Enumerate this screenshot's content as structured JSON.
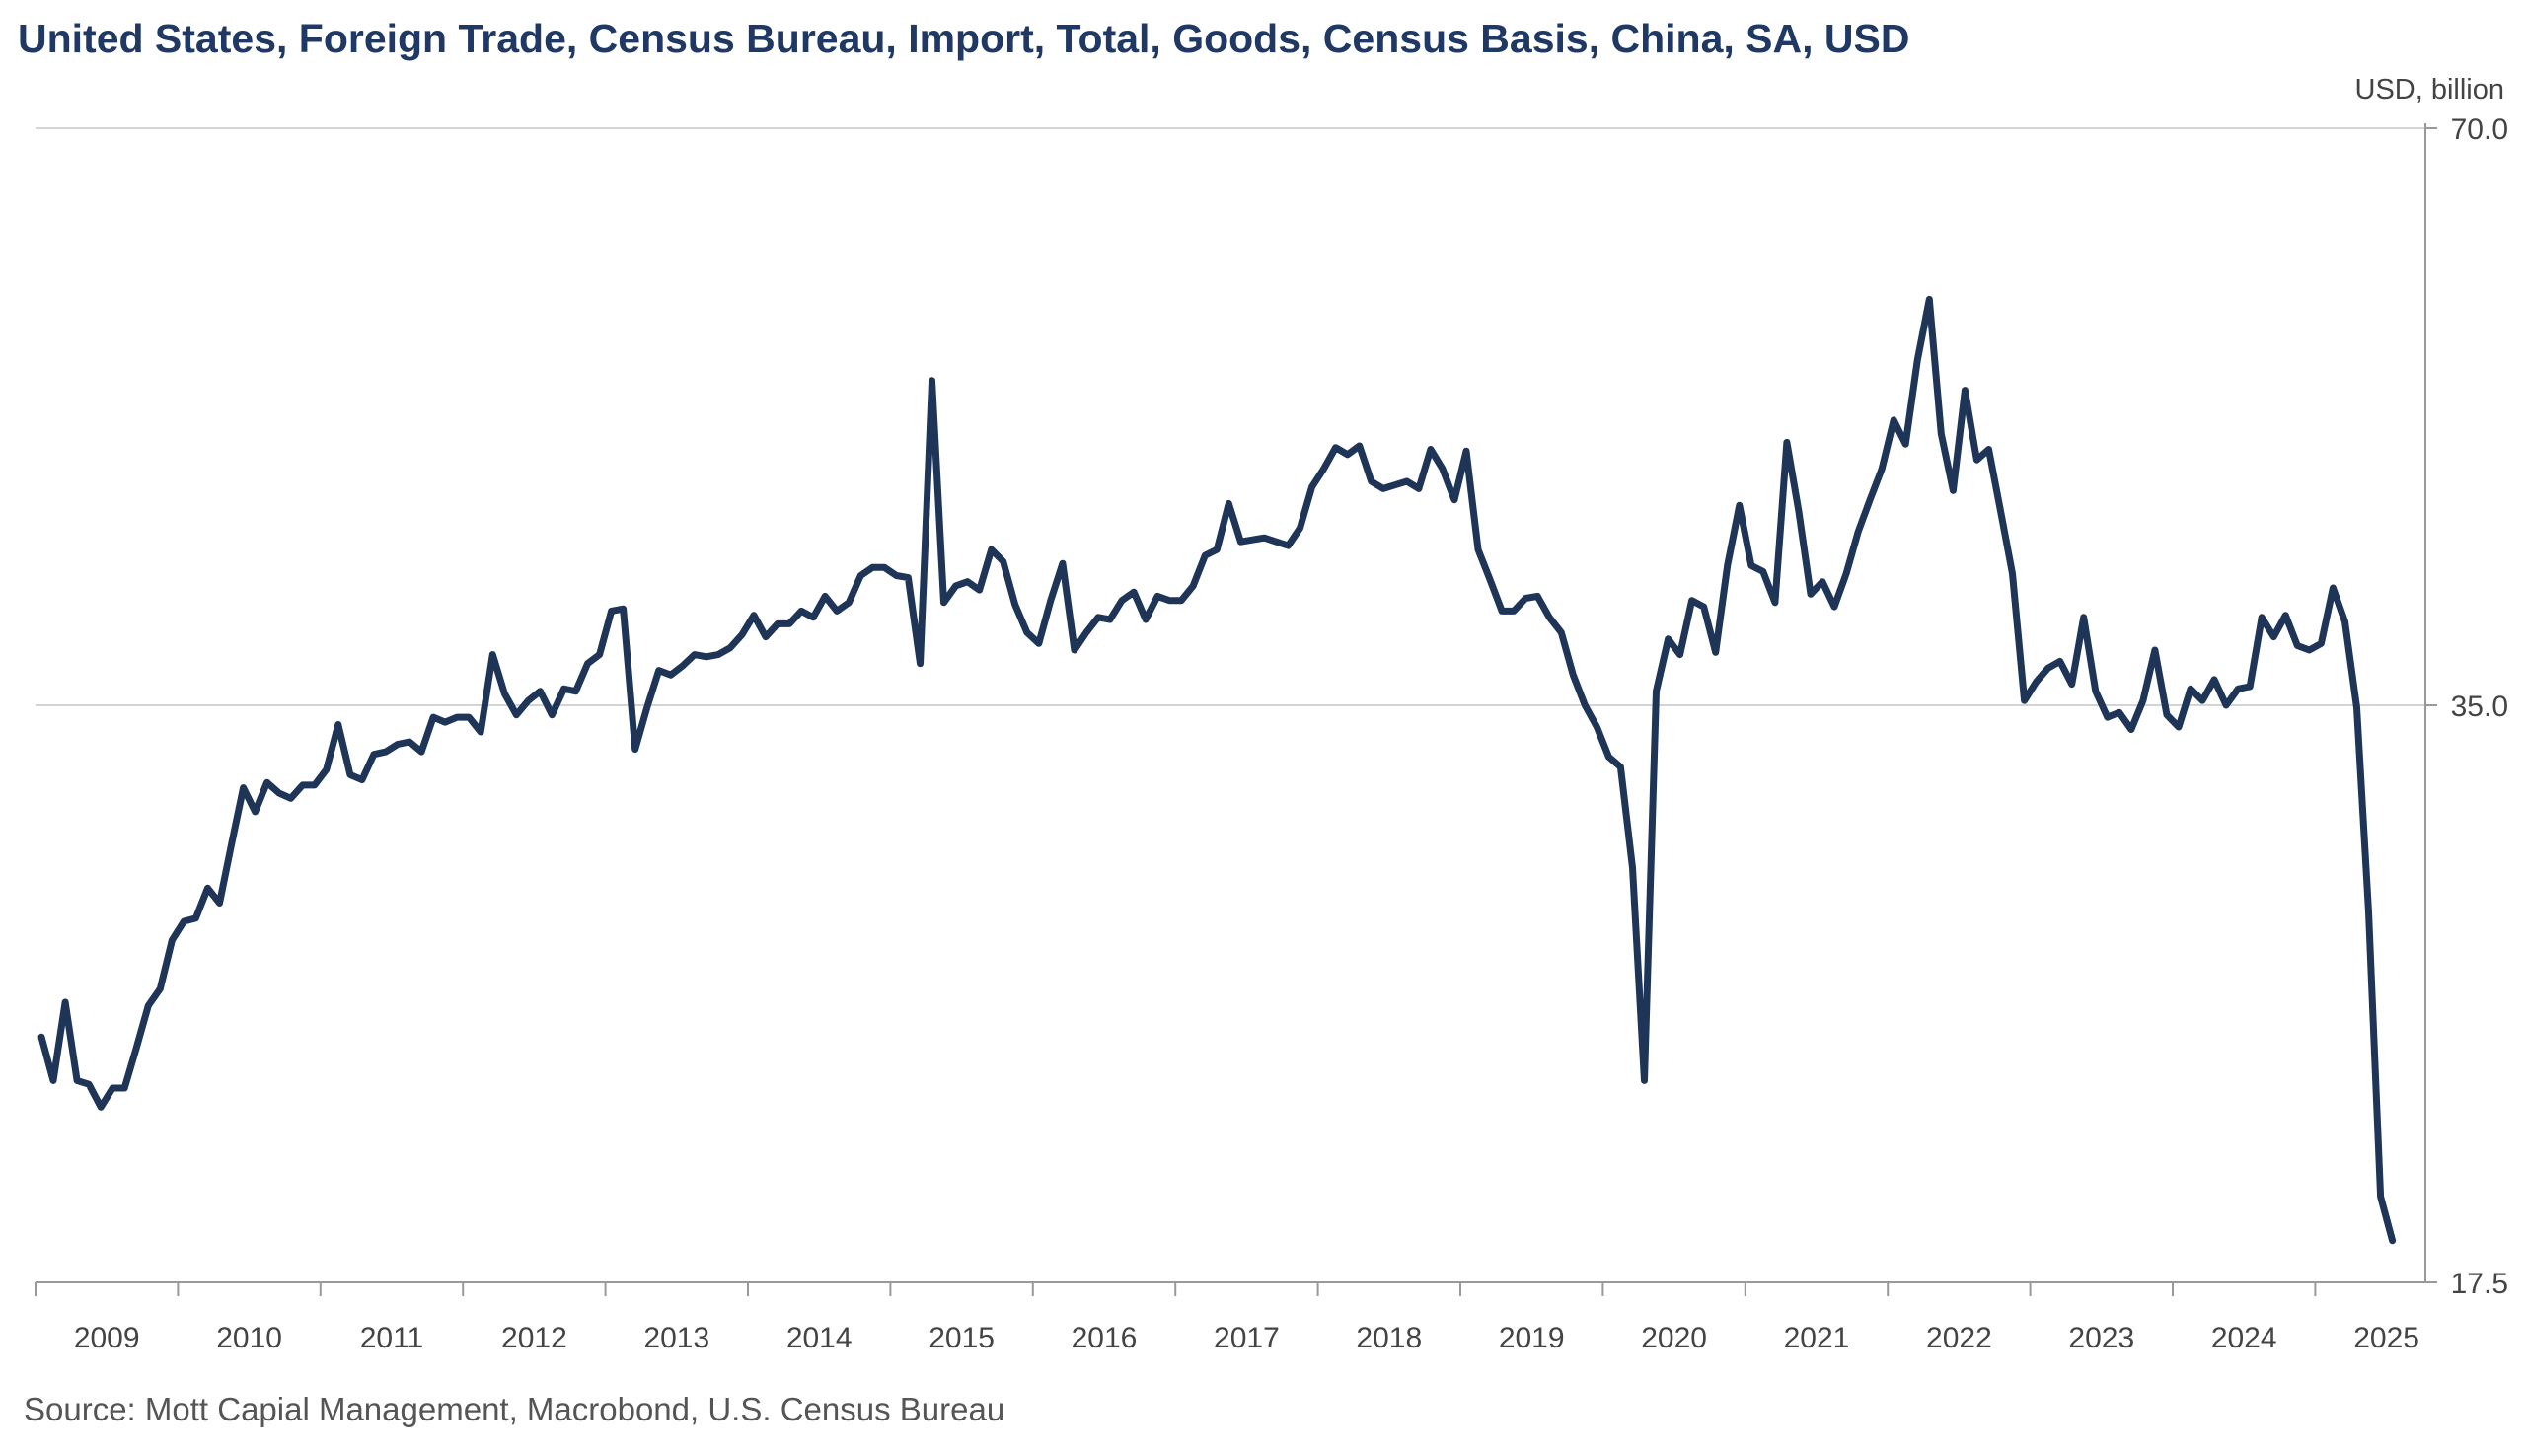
{
  "chart_data": {
    "type": "line",
    "title": "United States, Foreign Trade, Census Bureau, Import, Total, Goods, Census Basis, China, SA, USD",
    "ylabel": "USD, billion",
    "y_scale": "log",
    "ylim": [
      17.5,
      70.0
    ],
    "y_ticks": [
      "70.0",
      "35.0",
      "17.5"
    ],
    "y_gridlines": true,
    "y_axis_position": "right",
    "x_range": [
      "2009-01",
      "2025-12"
    ],
    "x_tick_labels": [
      "2009",
      "2010",
      "2011",
      "2012",
      "2013",
      "2014",
      "2015",
      "2016",
      "2017",
      "2018",
      "2019",
      "2020",
      "2021",
      "2022",
      "2023",
      "2024",
      "2025"
    ],
    "line_color": "#1f3558",
    "x_start": "2009-01",
    "x_step": "1 month",
    "series": [
      {
        "values": [
          23.5,
          22.3,
          24.5,
          22.3,
          22.2,
          21.6,
          22.1,
          22.1,
          23.2,
          24.4,
          24.9,
          26.4,
          27.0,
          27.1,
          28.1,
          27.6,
          29.6,
          31.7,
          30.8,
          31.9,
          31.5,
          31.3,
          31.8,
          31.8,
          32.4,
          34.2,
          32.2,
          32.0,
          33.0,
          33.1,
          33.4,
          33.5,
          33.1,
          34.5,
          34.3,
          34.5,
          34.5,
          33.9,
          37.2,
          35.5,
          34.6,
          35.2,
          35.6,
          34.6,
          35.7,
          35.6,
          36.8,
          37.2,
          39.2,
          39.3,
          33.2,
          34.9,
          36.5,
          36.3,
          36.7,
          37.2,
          37.1,
          37.2,
          37.5,
          38.1,
          39.0,
          38.0,
          38.6,
          38.6,
          39.2,
          38.9,
          39.9,
          39.2,
          39.6,
          40.9,
          41.3,
          41.3,
          40.9,
          40.8,
          36.8,
          51.7,
          39.6,
          40.4,
          40.6,
          40.2,
          42.2,
          41.6,
          39.5,
          38.2,
          37.7,
          39.7,
          41.5,
          37.4,
          38.2,
          38.9,
          38.8,
          39.7,
          40.1,
          38.8,
          39.9,
          39.7,
          39.7,
          40.4,
          41.9,
          42.2,
          44.6,
          42.6,
          42.7,
          42.8,
          42.6,
          42.4,
          43.3,
          45.5,
          46.5,
          47.7,
          47.3,
          47.8,
          45.8,
          45.4,
          45.6,
          45.8,
          45.4,
          47.6,
          46.5,
          44.8,
          47.5,
          42.2,
          40.7,
          39.2,
          39.2,
          39.8,
          39.9,
          38.9,
          38.2,
          36.3,
          35.0,
          34.1,
          32.9,
          32.5,
          28.8,
          22.3,
          35.6,
          37.9,
          37.2,
          39.7,
          39.4,
          37.3,
          41.4,
          44.5,
          41.4,
          41.1,
          39.6,
          48.0,
          44.2,
          40.0,
          40.6,
          39.4,
          41.0,
          43.1,
          44.8,
          46.5,
          49.3,
          47.9,
          53.0,
          57.0,
          48.5,
          45.3,
          51.1,
          47.0,
          47.6,
          44.2,
          41.0,
          35.2,
          36.0,
          36.6,
          36.9,
          35.9,
          38.9,
          35.6,
          34.5,
          34.7,
          34.0,
          35.2,
          37.4,
          34.6,
          34.1,
          35.7,
          35.2,
          36.1,
          35.0,
          35.7,
          35.8,
          38.9,
          38.0,
          39.0,
          37.6,
          37.4,
          37.7,
          40.3,
          38.7,
          34.9,
          27.3,
          19.4,
          18.4
        ]
      }
    ]
  },
  "source": "Source: Mott Capial Management, Macrobond, U.S. Census Bureau"
}
